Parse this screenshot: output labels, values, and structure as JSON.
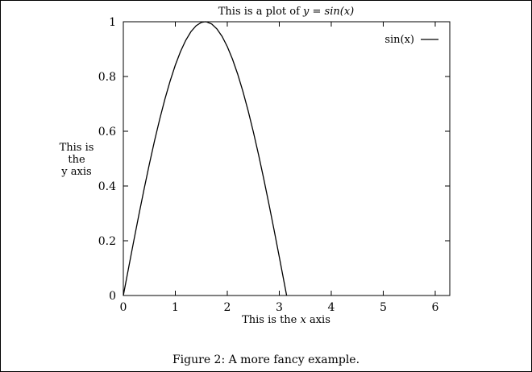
{
  "chart_data": {
    "type": "line",
    "title_prefix": "This is a plot of ",
    "title_math": "y = sin(x)",
    "xlabel_prefix": "This is the ",
    "xlabel_math": "x",
    "xlabel_suffix": " axis",
    "ylabel_lines": [
      "This is",
      "the",
      "y axis"
    ],
    "xlim": [
      0,
      6.28
    ],
    "ylim": [
      0,
      1
    ],
    "xticks": [
      "0",
      "1",
      "2",
      "3",
      "4",
      "5",
      "6"
    ],
    "yticks": [
      "0",
      "0.2",
      "0.4",
      "0.6",
      "0.8",
      "1"
    ],
    "grid": false,
    "legend_position": "top-right",
    "series": [
      {
        "name": "sin(x)",
        "color": "#000000",
        "x": [
          0,
          0.1,
          0.2,
          0.3,
          0.4,
          0.5,
          0.6,
          0.7,
          0.8,
          0.9,
          1.0,
          1.1,
          1.2,
          1.3,
          1.4,
          1.5,
          1.571,
          1.6,
          1.7,
          1.8,
          1.9,
          2.0,
          2.1,
          2.2,
          2.3,
          2.4,
          2.5,
          2.6,
          2.7,
          2.8,
          2.9,
          3.0,
          3.1,
          3.1416
        ],
        "y": [
          0,
          0.0998,
          0.1987,
          0.2955,
          0.3894,
          0.4794,
          0.5646,
          0.6442,
          0.7174,
          0.7833,
          0.8415,
          0.8912,
          0.932,
          0.9636,
          0.9854,
          0.9975,
          1.0,
          0.9996,
          0.9917,
          0.9738,
          0.9463,
          0.9093,
          0.8632,
          0.8085,
          0.7457,
          0.6755,
          0.5985,
          0.5155,
          0.4274,
          0.335,
          0.2392,
          0.1411,
          0.0416,
          0
        ]
      }
    ]
  },
  "caption": "Figure 2: A more fancy example."
}
